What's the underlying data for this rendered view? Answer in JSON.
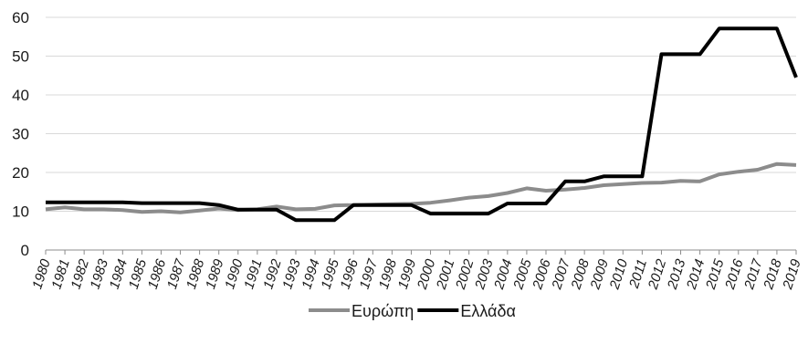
{
  "chart_data": {
    "type": "line",
    "x": [
      "1980",
      "1981",
      "1982",
      "1983",
      "1984",
      "1985",
      "1986",
      "1987",
      "1988",
      "1989",
      "1990",
      "1991",
      "1992",
      "1993",
      "1994",
      "1995",
      "1996",
      "1997",
      "1998",
      "1999",
      "2000",
      "2001",
      "2002",
      "2003",
      "2004",
      "2005",
      "2006",
      "2007",
      "2008",
      "2009",
      "2010",
      "2011",
      "2012",
      "2013",
      "2014",
      "2015",
      "2016",
      "2017",
      "2018",
      "2019"
    ],
    "ylim": [
      0,
      60
    ],
    "yticks": [
      "0",
      "10",
      "20",
      "30",
      "40",
      "50",
      "60"
    ],
    "grid": "horizontal",
    "legend_position": "bottom",
    "series": [
      {
        "name": "Ευρώπη",
        "color": "#8c8c8c",
        "values": [
          10.5,
          11.0,
          10.5,
          10.5,
          10.3,
          9.8,
          10.0,
          9.7,
          10.2,
          10.7,
          10.3,
          10.5,
          11.2,
          10.5,
          10.6,
          11.5,
          11.6,
          11.7,
          11.8,
          11.9,
          12.2,
          12.8,
          13.5,
          13.9,
          14.7,
          15.9,
          15.3,
          15.6,
          16.0,
          16.7,
          17.0,
          17.3,
          17.4,
          17.8,
          17.7,
          19.5,
          20.2,
          20.7,
          22.2,
          21.9
        ]
      },
      {
        "name": "Ελλάδα",
        "color": "#000000",
        "values": [
          12.3,
          12.3,
          12.3,
          12.3,
          12.3,
          12.1,
          12.1,
          12.1,
          12.1,
          11.6,
          10.4,
          10.4,
          10.4,
          7.7,
          7.7,
          7.7,
          11.6,
          11.6,
          11.6,
          11.6,
          9.4,
          9.4,
          9.4,
          9.4,
          12.0,
          12.0,
          12.0,
          17.7,
          17.7,
          19.0,
          19.0,
          19.0,
          50.5,
          50.5,
          50.5,
          57.1,
          57.1,
          57.1,
          57.1,
          44.5
        ]
      }
    ]
  }
}
